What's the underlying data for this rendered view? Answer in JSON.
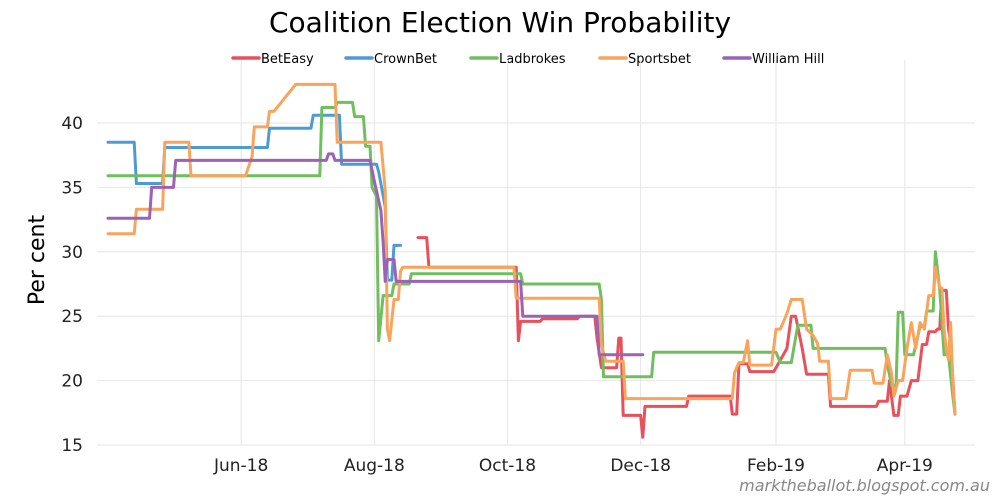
{
  "chart_data": {
    "type": "line",
    "title": "Coalition Election Win Probability",
    "xlabel": "",
    "ylabel": "Per cent",
    "ylim": [
      15,
      44
    ],
    "xlim": [
      0,
      388
    ],
    "x_units": "days since 2018-04-01",
    "yticks": [
      15,
      20,
      25,
      30,
      35,
      40
    ],
    "xticks": [
      {
        "label": "Jun-18",
        "x": 61
      },
      {
        "label": "Aug-18",
        "x": 122
      },
      {
        "label": "Oct-18",
        "x": 183
      },
      {
        "label": "Dec-18",
        "x": 244
      },
      {
        "label": "Feb-19",
        "x": 306
      },
      {
        "label": "Apr-19",
        "x": 365
      }
    ],
    "grid": true,
    "legend_position": "top",
    "credit": "marktheballot.blogspot.com.au",
    "series": [
      {
        "name": "BetEasy",
        "color": "#e8505b",
        "segments": [
          [
            [
              142,
              31.1
            ],
            [
              146,
              31.1
            ],
            [
              147,
              28.8
            ],
            [
              187,
              28.8
            ],
            [
              188,
              23.1
            ],
            [
              189,
              24.6
            ],
            [
              198,
              24.6
            ],
            [
              199,
              24.8
            ],
            [
              215,
              24.8
            ],
            [
              216,
              25.0
            ],
            [
              223,
              25.0
            ],
            [
              224,
              23.3
            ],
            [
              226,
              21.0
            ],
            [
              233,
              21.0
            ],
            [
              234,
              23.3
            ],
            [
              235,
              23.3
            ],
            [
              236,
              17.3
            ],
            [
              244,
              17.3
            ],
            [
              245,
              15.6
            ],
            [
              246,
              18.0
            ],
            [
              265,
              18.0
            ],
            [
              266,
              18.8
            ],
            [
              285,
              18.8
            ],
            [
              286,
              17.4
            ],
            [
              288,
              17.4
            ],
            [
              289,
              21.3
            ],
            [
              293,
              21.3
            ],
            [
              294,
              20.7
            ],
            [
              305,
              20.7
            ],
            [
              307,
              21.3
            ],
            [
              311,
              22.5
            ],
            [
              313,
              25.0
            ],
            [
              315,
              25.0
            ],
            [
              318,
              22.5
            ],
            [
              320,
              20.5
            ],
            [
              330,
              20.5
            ],
            [
              331,
              18.0
            ],
            [
              352,
              18.0
            ],
            [
              353,
              18.4
            ],
            [
              357,
              18.4
            ],
            [
              358,
              20.0
            ],
            [
              360,
              17.3
            ],
            [
              362,
              17.3
            ],
            [
              363,
              18.8
            ],
            [
              366,
              18.8
            ],
            [
              368,
              20.0
            ],
            [
              371,
              20.0
            ],
            [
              373,
              22.8
            ],
            [
              375,
              22.8
            ],
            [
              376,
              23.8
            ],
            [
              379,
              23.8
            ],
            [
              380,
              24.0
            ],
            [
              381,
              24.0
            ],
            [
              382,
              27.0
            ],
            [
              384,
              27.0
            ],
            [
              385,
              24.0
            ],
            [
              386,
              23.0
            ],
            [
              388,
              17.4
            ]
          ]
        ]
      },
      {
        "name": "CrownBet",
        "color": "#4e9bd3",
        "segments": [
          [
            [
              0,
              38.5
            ],
            [
              12,
              38.5
            ],
            [
              13,
              35.3
            ],
            [
              25,
              35.3
            ],
            [
              26,
              38.1
            ],
            [
              73,
              38.1
            ],
            [
              74,
              39.6
            ],
            [
              93,
              39.6
            ],
            [
              94,
              40.6
            ],
            [
              106,
              40.6
            ],
            [
              107,
              36.8
            ],
            [
              123,
              36.8
            ],
            [
              124,
              36.2
            ],
            [
              127,
              33.5
            ],
            [
              128,
              27.8
            ],
            [
              130,
              27.8
            ],
            [
              131,
              30.5
            ],
            [
              134,
              30.5
            ]
          ]
        ]
      },
      {
        "name": "Ladbrokes",
        "color": "#6fbf5e",
        "segments": [
          [
            [
              0,
              35.9
            ],
            [
              97,
              35.9
            ],
            [
              98,
              41.2
            ],
            [
              104,
              41.2
            ],
            [
              105,
              41.6
            ],
            [
              112,
              41.6
            ],
            [
              113,
              40.5
            ],
            [
              117,
              40.5
            ],
            [
              118,
              38.2
            ],
            [
              120,
              38.2
            ],
            [
              121,
              35.0
            ],
            [
              123,
              34.3
            ],
            [
              124,
              23.1
            ],
            [
              126,
              26.6
            ],
            [
              130,
              26.6
            ],
            [
              131,
              27.5
            ],
            [
              138,
              27.5
            ],
            [
              139,
              28.3
            ],
            [
              189,
              28.3
            ],
            [
              190,
              27.5
            ],
            [
              225,
              27.5
            ],
            [
              226,
              26.3
            ],
            [
              227,
              20.3
            ],
            [
              249,
              20.3
            ],
            [
              250,
              22.2
            ],
            [
              306,
              22.2
            ],
            [
              308,
              21.4
            ],
            [
              313,
              21.4
            ],
            [
              316,
              24.3
            ],
            [
              322,
              24.3
            ],
            [
              323,
              22.5
            ],
            [
              356,
              22.5
            ],
            [
              357,
              21.3
            ],
            [
              359,
              19.6
            ],
            [
              361,
              19.6
            ],
            [
              362,
              25.3
            ],
            [
              364,
              25.3
            ],
            [
              365,
              22.0
            ],
            [
              369,
              22.0
            ],
            [
              372,
              24.2
            ],
            [
              374,
              24.2
            ],
            [
              375,
              25.4
            ],
            [
              378,
              25.4
            ],
            [
              379,
              30.0
            ],
            [
              381,
              27.1
            ],
            [
              383,
              22.0
            ],
            [
              385,
              22.0
            ],
            [
              387,
              18.8
            ],
            [
              388,
              17.4
            ]
          ]
        ]
      },
      {
        "name": "Sportsbet",
        "color": "#f8a45c",
        "segments": [
          [
            [
              0,
              31.4
            ],
            [
              12,
              31.4
            ],
            [
              13,
              33.3
            ],
            [
              25,
              33.3
            ],
            [
              26,
              38.5
            ],
            [
              37,
              38.5
            ],
            [
              38,
              35.9
            ],
            [
              63,
              35.9
            ],
            [
              66,
              37.4
            ],
            [
              67,
              39.7
            ],
            [
              73,
              39.7
            ],
            [
              74,
              40.9
            ],
            [
              76,
              40.9
            ],
            [
              86,
              43.0
            ],
            [
              104,
              43.0
            ],
            [
              105,
              38.5
            ],
            [
              125,
              38.5
            ],
            [
              127,
              34.8
            ],
            [
              128,
              24.0
            ],
            [
              129,
              23.1
            ],
            [
              131,
              26.3
            ],
            [
              133,
              26.3
            ],
            [
              134,
              28.5
            ],
            [
              135,
              28.8
            ],
            [
              186,
              28.8
            ],
            [
              187,
              26.4
            ],
            [
              225,
              26.4
            ],
            [
              226,
              22.8
            ],
            [
              228,
              21.5
            ],
            [
              236,
              21.5
            ],
            [
              237,
              18.6
            ],
            [
              286,
              18.6
            ],
            [
              287,
              20.6
            ],
            [
              289,
              21.4
            ],
            [
              291,
              21.4
            ],
            [
              293,
              23.1
            ],
            [
              294,
              21.2
            ],
            [
              304,
              21.2
            ],
            [
              306,
              24.0
            ],
            [
              308,
              24.0
            ],
            [
              311,
              25.2
            ],
            [
              313,
              26.3
            ],
            [
              318,
              26.3
            ],
            [
              320,
              24.0
            ],
            [
              323,
              23.5
            ],
            [
              325,
              22.9
            ],
            [
              326,
              21.5
            ],
            [
              330,
              21.5
            ],
            [
              331,
              18.6
            ],
            [
              338,
              18.6
            ],
            [
              340,
              20.8
            ],
            [
              350,
              20.8
            ],
            [
              351,
              19.8
            ],
            [
              355,
              19.8
            ],
            [
              357,
              22.0
            ],
            [
              359,
              20.5
            ],
            [
              360,
              18.8
            ],
            [
              362,
              20.0
            ],
            [
              364,
              20.0
            ],
            [
              366,
              22.5
            ],
            [
              368,
              24.5
            ],
            [
              370,
              22.5
            ],
            [
              372,
              24.5
            ],
            [
              374,
              24.0
            ],
            [
              376,
              26.6
            ],
            [
              378,
              26.6
            ],
            [
              379,
              28.8
            ],
            [
              381,
              27.2
            ],
            [
              382,
              27.2
            ],
            [
              383,
              24.0
            ],
            [
              384,
              22.4
            ],
            [
              385,
              21.6
            ],
            [
              386,
              24.5
            ],
            [
              387,
              20.0
            ],
            [
              388,
              17.4
            ]
          ]
        ]
      },
      {
        "name": "William Hill",
        "color": "#9c62b5",
        "segments": [
          [
            [
              0,
              32.6
            ],
            [
              19,
              32.6
            ],
            [
              20,
              35.0
            ],
            [
              22,
              35.0
            ],
            [
              23,
              35.0
            ],
            [
              30,
              35.0
            ],
            [
              31,
              37.1
            ],
            [
              96,
              37.1
            ],
            [
              100,
              37.1
            ],
            [
              101,
              37.6
            ],
            [
              103,
              37.6
            ],
            [
              104,
              37.1
            ],
            [
              120,
              37.1
            ],
            [
              122,
              35.5
            ],
            [
              125,
              33.2
            ],
            [
              126,
              30.8
            ],
            [
              127,
              27.7
            ],
            [
              128,
              29.4
            ],
            [
              131,
              29.4
            ],
            [
              132,
              27.7
            ],
            [
              189,
              27.7
            ],
            [
              190,
              25.0
            ],
            [
              224,
              25.0
            ],
            [
              225,
              22.0
            ],
            [
              245,
              22.0
            ]
          ]
        ]
      }
    ]
  }
}
